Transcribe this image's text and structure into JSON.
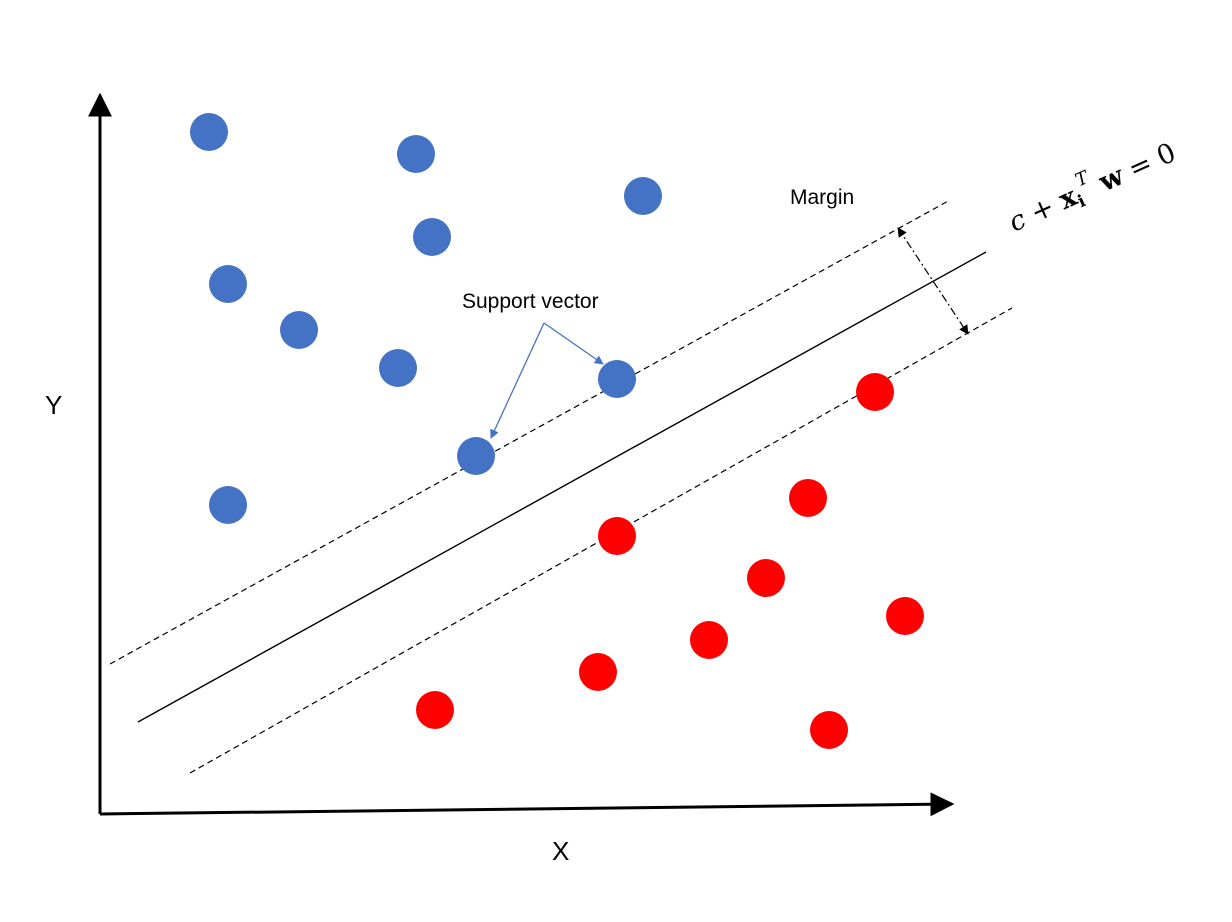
{
  "axes": {
    "x_label": "X",
    "y_label": "Y"
  },
  "annotations": {
    "margin_label": "Margin",
    "support_vector_label": "Support vector"
  },
  "equation": {
    "c": "c",
    "plus": " + ",
    "x": "x",
    "subscript": "i",
    "superscript": "T",
    "w": " w",
    "equals": " = 0"
  },
  "classes": [
    {
      "name": "blue",
      "color": "#4472c4"
    },
    {
      "name": "red",
      "color": "#ff0000"
    }
  ],
  "colors": {
    "arrow": "#4472c4",
    "lines": "#000000"
  }
}
